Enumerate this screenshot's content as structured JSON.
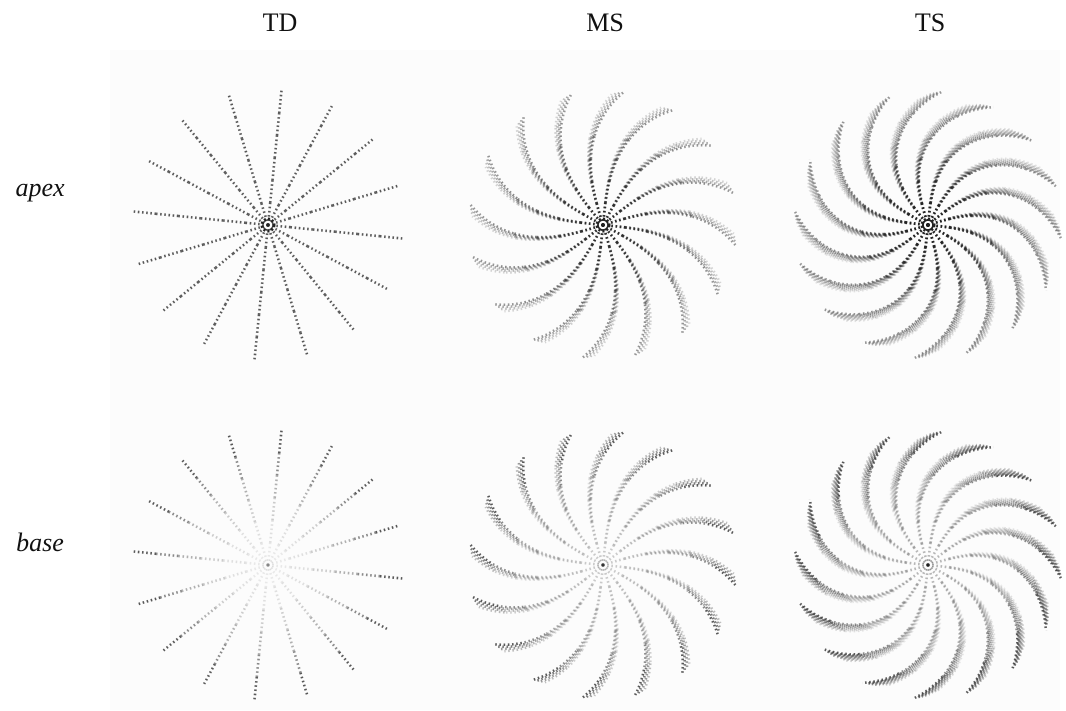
{
  "columns": [
    "TD",
    "MS",
    "TS"
  ],
  "rows": [
    "apex",
    "base"
  ]
}
